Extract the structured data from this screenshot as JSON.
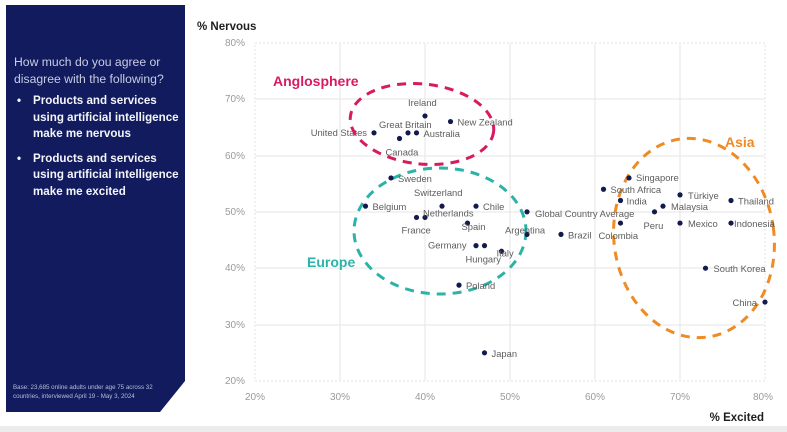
{
  "sidebar": {
    "question": "How much do you agree or disagree with the following?",
    "bullets": [
      "Products and services using artificial intelligence make me nervous",
      "Products and services using artificial intelligence make me excited"
    ],
    "base_note": "Base: 23,685 online adults under age 75 across 32 countries, interviewed April 19 - May 3, 2024",
    "bullet_glyph": "•",
    "background_color": "#111b5d"
  },
  "chart_data": {
    "type": "scatter",
    "title": "",
    "xlabel": "% Excited",
    "ylabel": "% Nervous",
    "xlim": [
      20,
      80
    ],
    "ylim": [
      20,
      80
    ],
    "x_ticks": [
      "20%",
      "30%",
      "40%",
      "50%",
      "60%",
      "70%",
      "80%"
    ],
    "y_ticks": [
      "80%",
      "70%",
      "60%",
      "50%",
      "40%",
      "30%",
      "20%"
    ],
    "grid": true,
    "point_color": "#131a4e",
    "groups": [
      {
        "name": "Anglosphere",
        "color": "#d81b60"
      },
      {
        "name": "Europe",
        "color": "#2bb3a8"
      },
      {
        "name": "Asia",
        "color": "#f08a24"
      }
    ],
    "points": [
      {
        "label": "United States",
        "x": 34,
        "y": 64
      },
      {
        "label": "Canada",
        "x": 37,
        "y": 63
      },
      {
        "label": "Great Britain",
        "x": 38,
        "y": 64
      },
      {
        "label": "Australia",
        "x": 39,
        "y": 64
      },
      {
        "label": "Ireland",
        "x": 40,
        "y": 67
      },
      {
        "label": "New Zealand",
        "x": 43,
        "y": 66
      },
      {
        "label": "Sweden",
        "x": 36,
        "y": 56
      },
      {
        "label": "Belgium",
        "x": 33,
        "y": 51
      },
      {
        "label": "Switzerland",
        "x": 42,
        "y": 51
      },
      {
        "label": "Chile",
        "x": 46,
        "y": 51
      },
      {
        "label": "France",
        "x": 39,
        "y": 49
      },
      {
        "label": "Netherlands",
        "x": 40,
        "y": 49
      },
      {
        "label": "Spain",
        "x": 45,
        "y": 48
      },
      {
        "label": "Germany",
        "x": 46,
        "y": 44
      },
      {
        "label": "Hungary",
        "x": 47,
        "y": 44
      },
      {
        "label": "Italy",
        "x": 49,
        "y": 43
      },
      {
        "label": "Argentina",
        "x": 52,
        "y": 46
      },
      {
        "label": "Poland",
        "x": 44,
        "y": 37
      },
      {
        "label": "Global Country Average",
        "x": 52,
        "y": 50
      },
      {
        "label": "Brazil",
        "x": 56,
        "y": 46
      },
      {
        "label": "South Africa",
        "x": 61,
        "y": 54
      },
      {
        "label": "Singapore",
        "x": 64,
        "y": 56
      },
      {
        "label": "India",
        "x": 63,
        "y": 52
      },
      {
        "label": "Colombia",
        "x": 63,
        "y": 48
      },
      {
        "label": "Peru",
        "x": 67,
        "y": 50
      },
      {
        "label": "Malaysia",
        "x": 68,
        "y": 51
      },
      {
        "label": "Türkiye",
        "x": 70,
        "y": 53
      },
      {
        "label": "Mexico",
        "x": 70,
        "y": 48
      },
      {
        "label": "Thailand",
        "x": 76,
        "y": 52
      },
      {
        "label": "Indonesia",
        "x": 76,
        "y": 48
      },
      {
        "label": "South Korea",
        "x": 73,
        "y": 40
      },
      {
        "label": "China",
        "x": 80,
        "y": 34
      },
      {
        "label": "Japan",
        "x": 47,
        "y": 25
      }
    ]
  }
}
